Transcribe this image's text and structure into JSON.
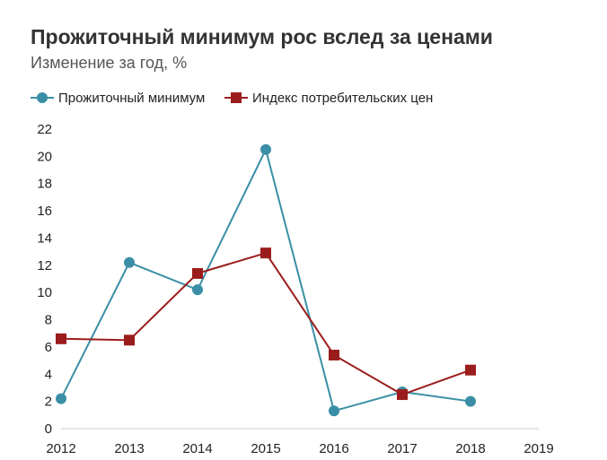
{
  "chart_data": {
    "type": "line",
    "title": "Прожиточный минимум рос вслед за ценами",
    "subtitle": "Изменение за год, %",
    "xlabel": "",
    "ylabel": "",
    "x_ticks": [
      "2012",
      "2013",
      "2014",
      "2015",
      "2016",
      "2017",
      "2018",
      "2019"
    ],
    "y_ticks": [
      "0",
      "2",
      "4",
      "6",
      "8",
      "10",
      "12",
      "14",
      "16",
      "18",
      "20",
      "22"
    ],
    "ylim": [
      0,
      22
    ],
    "xlim": [
      2012,
      2019
    ],
    "grid": false,
    "legend_position": "top-left",
    "series": [
      {
        "name": "Прожиточный минимум",
        "color": "#3a8fa6",
        "marker": "circle",
        "x": [
          2012,
          2013,
          2014,
          2015,
          2016,
          2017,
          2018
        ],
        "values": [
          2.2,
          12.2,
          10.2,
          20.5,
          1.3,
          2.7,
          2.0
        ]
      },
      {
        "name": "Индекс потребительских цен",
        "color": "#9b1c1c",
        "marker": "square",
        "x": [
          2012,
          2013,
          2014,
          2015,
          2016,
          2017,
          2018
        ],
        "values": [
          6.6,
          6.5,
          11.4,
          12.9,
          5.4,
          2.5,
          4.3
        ]
      }
    ]
  }
}
